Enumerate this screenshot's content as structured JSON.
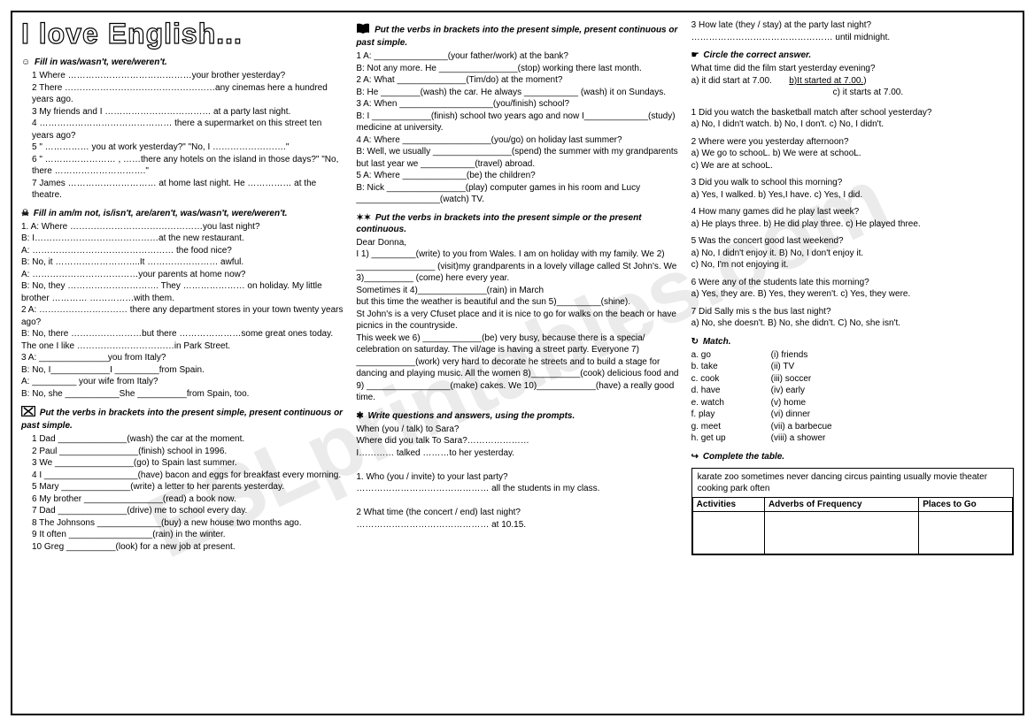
{
  "title": "I love English...",
  "watermark": "ESLprintables.com",
  "col1": {
    "s1": {
      "head": "Fill in was/wasn't, were/weren't.",
      "lines": [
        "1 Where ……………………………………your brother yesterday?",
        "2 There ……………………………………………any cinemas here a hundred years ago.",
        "3 My friends and I ……………………………… at a party last night.",
        "4 ……………………………………… there a supermarket on this street ten years ago?",
        "5 \" …………… you at work yesterday?\" \"No, I …………………….\"",
        "6 \" …………………… , ……there any hotels on the island in those days?\" \"No, there ………………………….\"",
        "7 James ………………………… at home last night. He …………… at the theatre."
      ]
    },
    "s2": {
      "head": "Fill in am/m not, is/isn't, are/aren't, was/wasn't, were/weren't.",
      "lines": [
        "1. A: Where ………………………………………you last night?",
        "    B: I……………………………………at the new restaurant.",
        "    A: ………………………………………… the food nice?",
        "    B: No, it ………………………..It …………………… awful.",
        "    A: ………………………………your parents at home now?",
        "    B: No, they …………………………. They ………………… on holiday. My little brother ………… ……………with them.",
        "2 A: ………………………… there any department stores in your town twenty years ago?",
        "    B: No, there ……………………but there …………………some great ones today. The one I like ……………………………in Park Street.",
        "3 A: ______________you from Italy?",
        "    B: No, I____________I _________from Spain.",
        "    A: _________ your wife from Italy?",
        "    B: No, she ___________She __________from Spain, too."
      ]
    },
    "s3": {
      "head": "Put the verbs in brackets into the present simple, present continuous or past simple.",
      "lines": [
        "1 Dad ______________(wash) the car at the  moment.",
        "2 Paul ________________(finish) school in 1996.",
        "3 We ________________(go) to Spain last summer.",
        "4 I ___________________(have) bacon and eggs for breakfast every morning.",
        "5 Mary ______________(write) a letter to her parents yesterday.",
        "6 My brother ________________(read) a book now.",
        "7 Dad ______________(drive) me to school every day.",
        "8 The Johnsons _____________(buy) a new house two months ago.",
        "9 It often _________________(rain) in the winter.",
        "10 Greg __________(look) for a new job at present."
      ]
    }
  },
  "col2": {
    "s4": {
      "head": "Put the verbs in brackets into the present simple, present continuous or past simple.",
      "lines": [
        "1 A: _______________(your father/work)  at the bank?",
        "B: Not any more. He ________________(stop) working there last month.",
        "2 A: What ______________(Tim/do) at the moment?",
        "B: He ________(wash) the car. He always ___________ (wash) it on Sundays.",
        "3 A: When ___________________(you/finish) school?",
        "B: I ____________(finish) school two years ago and now I_____________(study) medicine at university.",
        "4 A: Where __________________(you/go) on holiday last summer?",
        "B: Well, we usually ________________(spend) the summer with my grandparents but last year we ___________(travel) abroad.",
        "5 A: Where _____________(be) the children?",
        "B: Nick ________________(play) computer games in his room and Lucy _________________(watch) TV."
      ]
    },
    "s5": {
      "head": "Put the verbs in brackets into the present simple or the present continuous.",
      "lines": [
        "Dear Donna,",
        "I 1) _________(write) to you from Wales. I am on holiday with my family. We 2) ________________ (visit)my grandparents in a lovely village called St John's. We 3)__________ (come) here every year.",
        "        Sometimes it 4)______________(rain) in March",
        "but this time the weather is beautiful and the sun 5)_________(shine).",
        "        St John's is a very Cfuset place and it is nice to go for walks on the beach or have picnics in the countryside.",
        "        This week we 6) ____________(be) very busy, because there is a specia/ celebration on saturday. The vil/age is having a street party. Everyone 7) ____________(work) very hard to decorate  he streets and to build a stage for dancing and playing music. All the women 8)__________(cook) delicious food and 9) _________________(make) cakes. We 10)____________(have) a really good time."
      ]
    },
    "s6": {
      "head": "Write questions and answers, using the prompts.",
      "lines": [
        "When (you / talk) to Sara?",
        "Where did you talk To Sara?…………………",
        "I………… talked ………to her yesterday.",
        "",
        "1. Who (you / invite) to your last party?",
        "……………………………………… all the students in my class.",
        "",
        "2 What time (the concert / end) last night?",
        "……………………………………… at 10.15."
      ]
    }
  },
  "col3": {
    "s6b": {
      "lines": [
        "3 How late (they / stay) at the party last night?",
        "………………………………………… until midnight."
      ]
    },
    "s7": {
      "head": "Circle the correct answer.",
      "example": {
        "q": "What time did the film start yesterday evening?",
        "a": "a) it did start at 7.00.",
        "b": "b)It started at 7.00.",
        "c": "c) it starts at 7.00."
      },
      "items": [
        {
          "q": "1  Did you watch the basketball match after school yesterday?",
          "opts": "a) No, I didn't watch.     b) No, I don't.       c) No, I didn't."
        },
        {
          "q": "2 Where were you yesterday afternoon?",
          "opts": "a) We go to schooL.    b) We were at schooL.\nc) We are at schooL."
        },
        {
          "q": "3 Did you walk to school this morning?",
          "opts": "a) Yes, I walked.     b) Yes,I have.     c) Yes, I did."
        },
        {
          "q": "4 How many games did he play last week?",
          "opts": "a) He plays three.     b) He did play three.     c) He played three."
        },
        {
          "q": "5 Was the concert good last weekend?",
          "opts": "a) No, I didn't enjoy it.     B)  No, I don't enjoy it.\n     c) No, I'm not enjoying it."
        },
        {
          "q": "6 Were any of the students late this morning?",
          "opts": "a) Yes, they are.    B) Yes, they weren't.  c) Yes, they were."
        },
        {
          "q": "7 Did Sally mis s the bus last night?",
          "opts": "a) No, she doesn't.     B) No, she didn't.       C) No, she isn't."
        }
      ]
    },
    "s8": {
      "head": "Match.",
      "rows": [
        {
          "l": "a. go",
          "r": "(i) friends"
        },
        {
          "l": "b. take",
          "r": "(ii) TV"
        },
        {
          "l": "c. cook",
          "r": "(iii) soccer"
        },
        {
          "l": "d. have",
          "r": "(iv) early"
        },
        {
          "l": "e. watch",
          "r": "(v) home"
        },
        {
          "l": "f. play",
          "r": "(vi) dinner"
        },
        {
          "l": "g. meet",
          "r": "(vii) a barbecue"
        },
        {
          "l": "h. get up",
          "r": "(viii) a shower"
        }
      ]
    },
    "s9": {
      "head": "Complete the table.",
      "words": "karate    zoo    sometimes    never    dancing    circus    painting    usually    movie    theater    cooking        park    often",
      "headers": [
        "Activities",
        "Adverbs of Frequency",
        "Places to Go"
      ]
    }
  }
}
